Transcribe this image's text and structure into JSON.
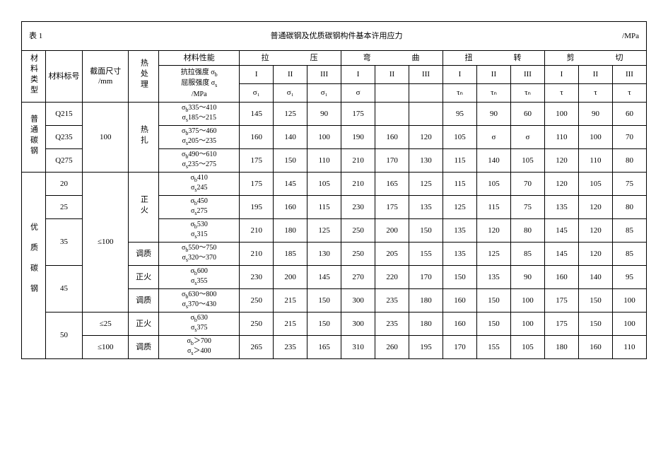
{
  "meta": {
    "table_no": "表 1",
    "title": "普通碳钢及优质碳钢构件基本许用应力",
    "unit": "/MPa"
  },
  "headers": {
    "col1": "材料类型",
    "col2_top": "材料标号",
    "col2_bot": "",
    "col3_top": "截面尺寸",
    "col3_bot": "/mm",
    "col4": "热处理",
    "prop": "材料性能",
    "prop_line1": "抗拉强度 σ",
    "prop_sub1": "b",
    "prop_line2": "屈服强度 σ",
    "prop_sub2": "s",
    "prop_line3": "/MPa",
    "groups": [
      "拉　　压",
      "弯　　曲",
      "扭　　转",
      "剪　　切"
    ],
    "rn": [
      "I",
      "II",
      "III"
    ],
    "sym_row": {
      "g1": [
        "σ₁",
        "σ₁",
        "σ₁"
      ],
      "g2": [
        "σ",
        "",
        ""
      ],
      "g3": [
        "τₙ",
        "τₙ",
        "τₙ"
      ],
      "g4": [
        "τ",
        "τ",
        "τ"
      ]
    }
  },
  "cat1": {
    "name": "普通碳钢",
    "grades": [
      "Q215",
      "Q235",
      "Q275"
    ],
    "size": "100",
    "heat": "热扎",
    "sigma": [
      "σb335～410\nσs185～215",
      "σb375～460\nσs205～235",
      "σb490～610\nσs235～275"
    ],
    "rows": [
      [
        "145",
        "125",
        "90",
        "175",
        "",
        "",
        "95",
        "90",
        "60",
        "100",
        "90",
        "60"
      ],
      [
        "160",
        "140",
        "100",
        "190",
        "160",
        "120",
        "105",
        "σ",
        "σ",
        "110",
        "100",
        "70"
      ],
      [
        "175",
        "150",
        "110",
        "210",
        "170",
        "130",
        "115",
        "140",
        "105",
        "120",
        "110",
        "80"
      ]
    ]
  },
  "cat2": {
    "name": "优质碳钢",
    "blocks": [
      {
        "grade": "20",
        "size_span": 0,
        "heat": "正火",
        "heat_span": 3,
        "sigma": "σb410\nσs245",
        "v": [
          "175",
          "145",
          "105",
          "210",
          "165",
          "125",
          "115",
          "105",
          "70",
          "120",
          "105",
          "75"
        ]
      },
      {
        "grade": "25",
        "size_span": 0,
        "heat": "",
        "heat_span": 0,
        "sigma": "σb450\nσs275",
        "v": [
          "195",
          "160",
          "115",
          "230",
          "175",
          "135",
          "125",
          "115",
          "75",
          "135",
          "120",
          "80"
        ]
      },
      {
        "grade": "35",
        "grade_span": 2,
        "size_span": 0,
        "heat": "",
        "heat_span": 0,
        "sigma": "σb530\nσs315",
        "v": [
          "210",
          "180",
          "125",
          "250",
          "200",
          "150",
          "135",
          "120",
          "80",
          "145",
          "120",
          "85"
        ]
      },
      {
        "grade": "",
        "size_span": 0,
        "heat": "调质",
        "heat_span": 1,
        "sigma": "σb550～750\nσs320～370",
        "v": [
          "210",
          "185",
          "130",
          "250",
          "205",
          "155",
          "135",
          "125",
          "85",
          "145",
          "120",
          "85"
        ]
      },
      {
        "grade": "45",
        "grade_span": 2,
        "size_span": 0,
        "heat": "正火",
        "heat_span": 1,
        "sigma": "σb600\nσs355",
        "v": [
          "230",
          "200",
          "145",
          "270",
          "220",
          "170",
          "150",
          "135",
          "90",
          "160",
          "140",
          "95"
        ]
      },
      {
        "grade": "",
        "size_span": 0,
        "heat": "调质",
        "heat_span": 1,
        "sigma": "σb630～800\nσs370～430",
        "v": [
          "250",
          "215",
          "150",
          "300",
          "235",
          "180",
          "160",
          "150",
          "100",
          "175",
          "150",
          "100"
        ]
      },
      {
        "grade": "50",
        "grade_span": 2,
        "size": "≤25",
        "heat": "正火",
        "heat_span": 1,
        "sigma": "σb630\nσs375",
        "v": [
          "250",
          "215",
          "150",
          "300",
          "235",
          "180",
          "160",
          "150",
          "100",
          "175",
          "150",
          "100"
        ]
      },
      {
        "grade": "",
        "size": "≤100",
        "heat": "调质",
        "heat_span": 1,
        "sigma": "σb＞700\nσs＞400",
        "v": [
          "265",
          "235",
          "165",
          "310",
          "260",
          "195",
          "170",
          "155",
          "105",
          "180",
          "160",
          "110"
        ]
      }
    ],
    "size_main": "≤100"
  }
}
